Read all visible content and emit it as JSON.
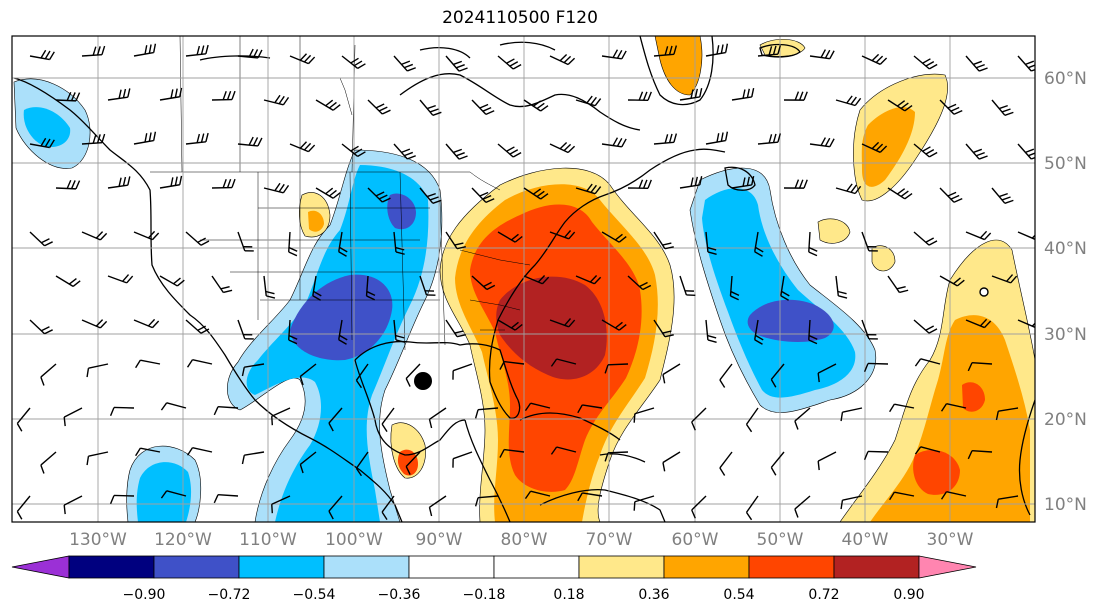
{
  "title": "2024110500 F120",
  "map": {
    "lon_labels": [
      "130°W",
      "120°W",
      "110°W",
      "100°W",
      "90°W",
      "80°W",
      "70°W",
      "60°W",
      "50°W",
      "40°W",
      "30°W"
    ],
    "lat_labels": [
      "60°N",
      "50°N",
      "40°N",
      "30°N",
      "20°N",
      "10°N"
    ],
    "marker": "storm-center-dot"
  },
  "colorbar": {
    "ticks": [
      "−0.90",
      "−0.72",
      "−0.54",
      "−0.36",
      "−0.18",
      "0.18",
      "0.36",
      "0.54",
      "0.72",
      "0.90"
    ],
    "colors": {
      "below": "#9b30d6",
      "b1": "#00007f",
      "b2": "#3f51c8",
      "b3": "#00bfff",
      "b4": "#abe0fa",
      "neutral": "#ffffff",
      "p1": "#ffe88a",
      "p2": "#ffa500",
      "p3": "#ff4500",
      "p4": "#b22222",
      "above": "#ff85b0"
    }
  }
}
